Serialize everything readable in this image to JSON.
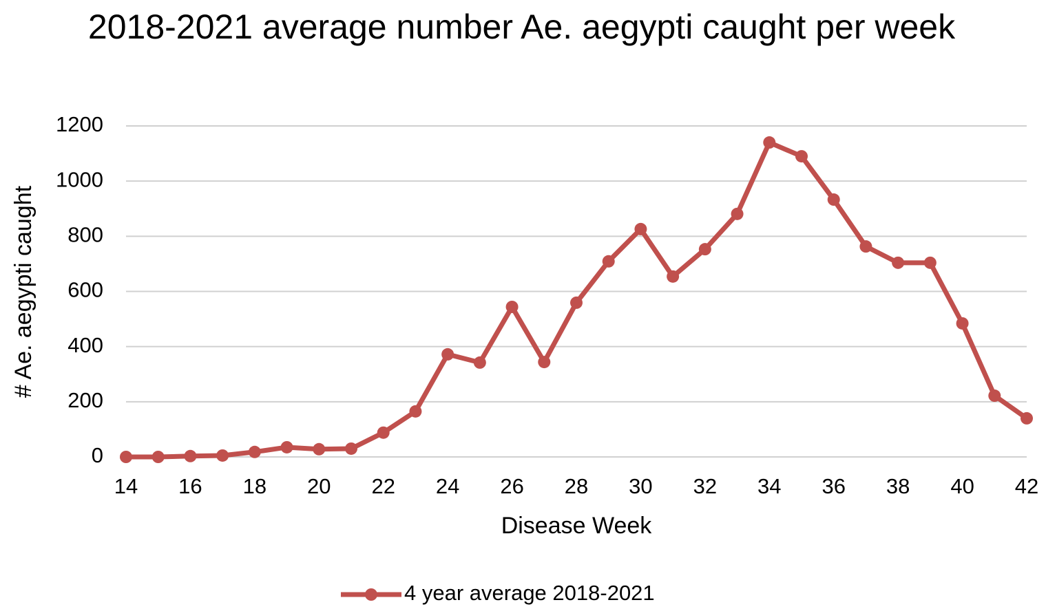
{
  "chart_data": {
    "type": "line",
    "title": "2018-2021 average number Ae. aegypti caught per week",
    "x_label": "Disease Week",
    "y_label": "# Ae. aegypti caught",
    "x": [
      14,
      15,
      16,
      17,
      18,
      19,
      20,
      21,
      22,
      23,
      24,
      25,
      26,
      27,
      28,
      29,
      30,
      31,
      32,
      33,
      34,
      35,
      36,
      37,
      38,
      39,
      40,
      41,
      42
    ],
    "series": [
      {
        "name": "4 year average 2018-2021",
        "color": "#c0504d",
        "values": [
          0,
          0,
          3,
          5,
          18,
          35,
          28,
          30,
          88,
          165,
          372,
          342,
          544,
          344,
          559,
          709,
          826,
          654,
          753,
          881,
          1140,
          1090,
          933,
          763,
          704,
          704,
          484,
          222,
          140
        ]
      }
    ],
    "xlim": [
      14,
      42
    ],
    "xticks": [
      14,
      16,
      18,
      20,
      22,
      24,
      26,
      28,
      30,
      32,
      34,
      36,
      38,
      40,
      42
    ],
    "ylim": [
      0,
      1200
    ],
    "yticks": [
      0,
      200,
      400,
      600,
      800,
      1000,
      1200
    ],
    "grid": true,
    "legend": "bottom"
  }
}
